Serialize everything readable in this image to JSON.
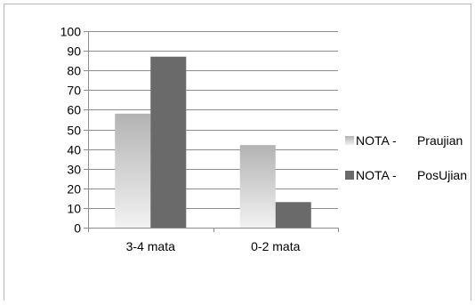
{
  "chart_data": {
    "type": "bar",
    "categories": [
      "3-4 mata",
      "0-2 mata"
    ],
    "series": [
      {
        "name": "NOTA -      Praujian",
        "values": [
          58,
          42
        ]
      },
      {
        "name": "NOTA -      PosUjian",
        "values": [
          87,
          13
        ]
      }
    ],
    "yticks": [
      "0",
      "10",
      "20",
      "30",
      "40",
      "50",
      "60",
      "70",
      "80",
      "90",
      "100"
    ],
    "ylim": [
      0,
      100
    ],
    "grid": true,
    "legend": "right"
  }
}
